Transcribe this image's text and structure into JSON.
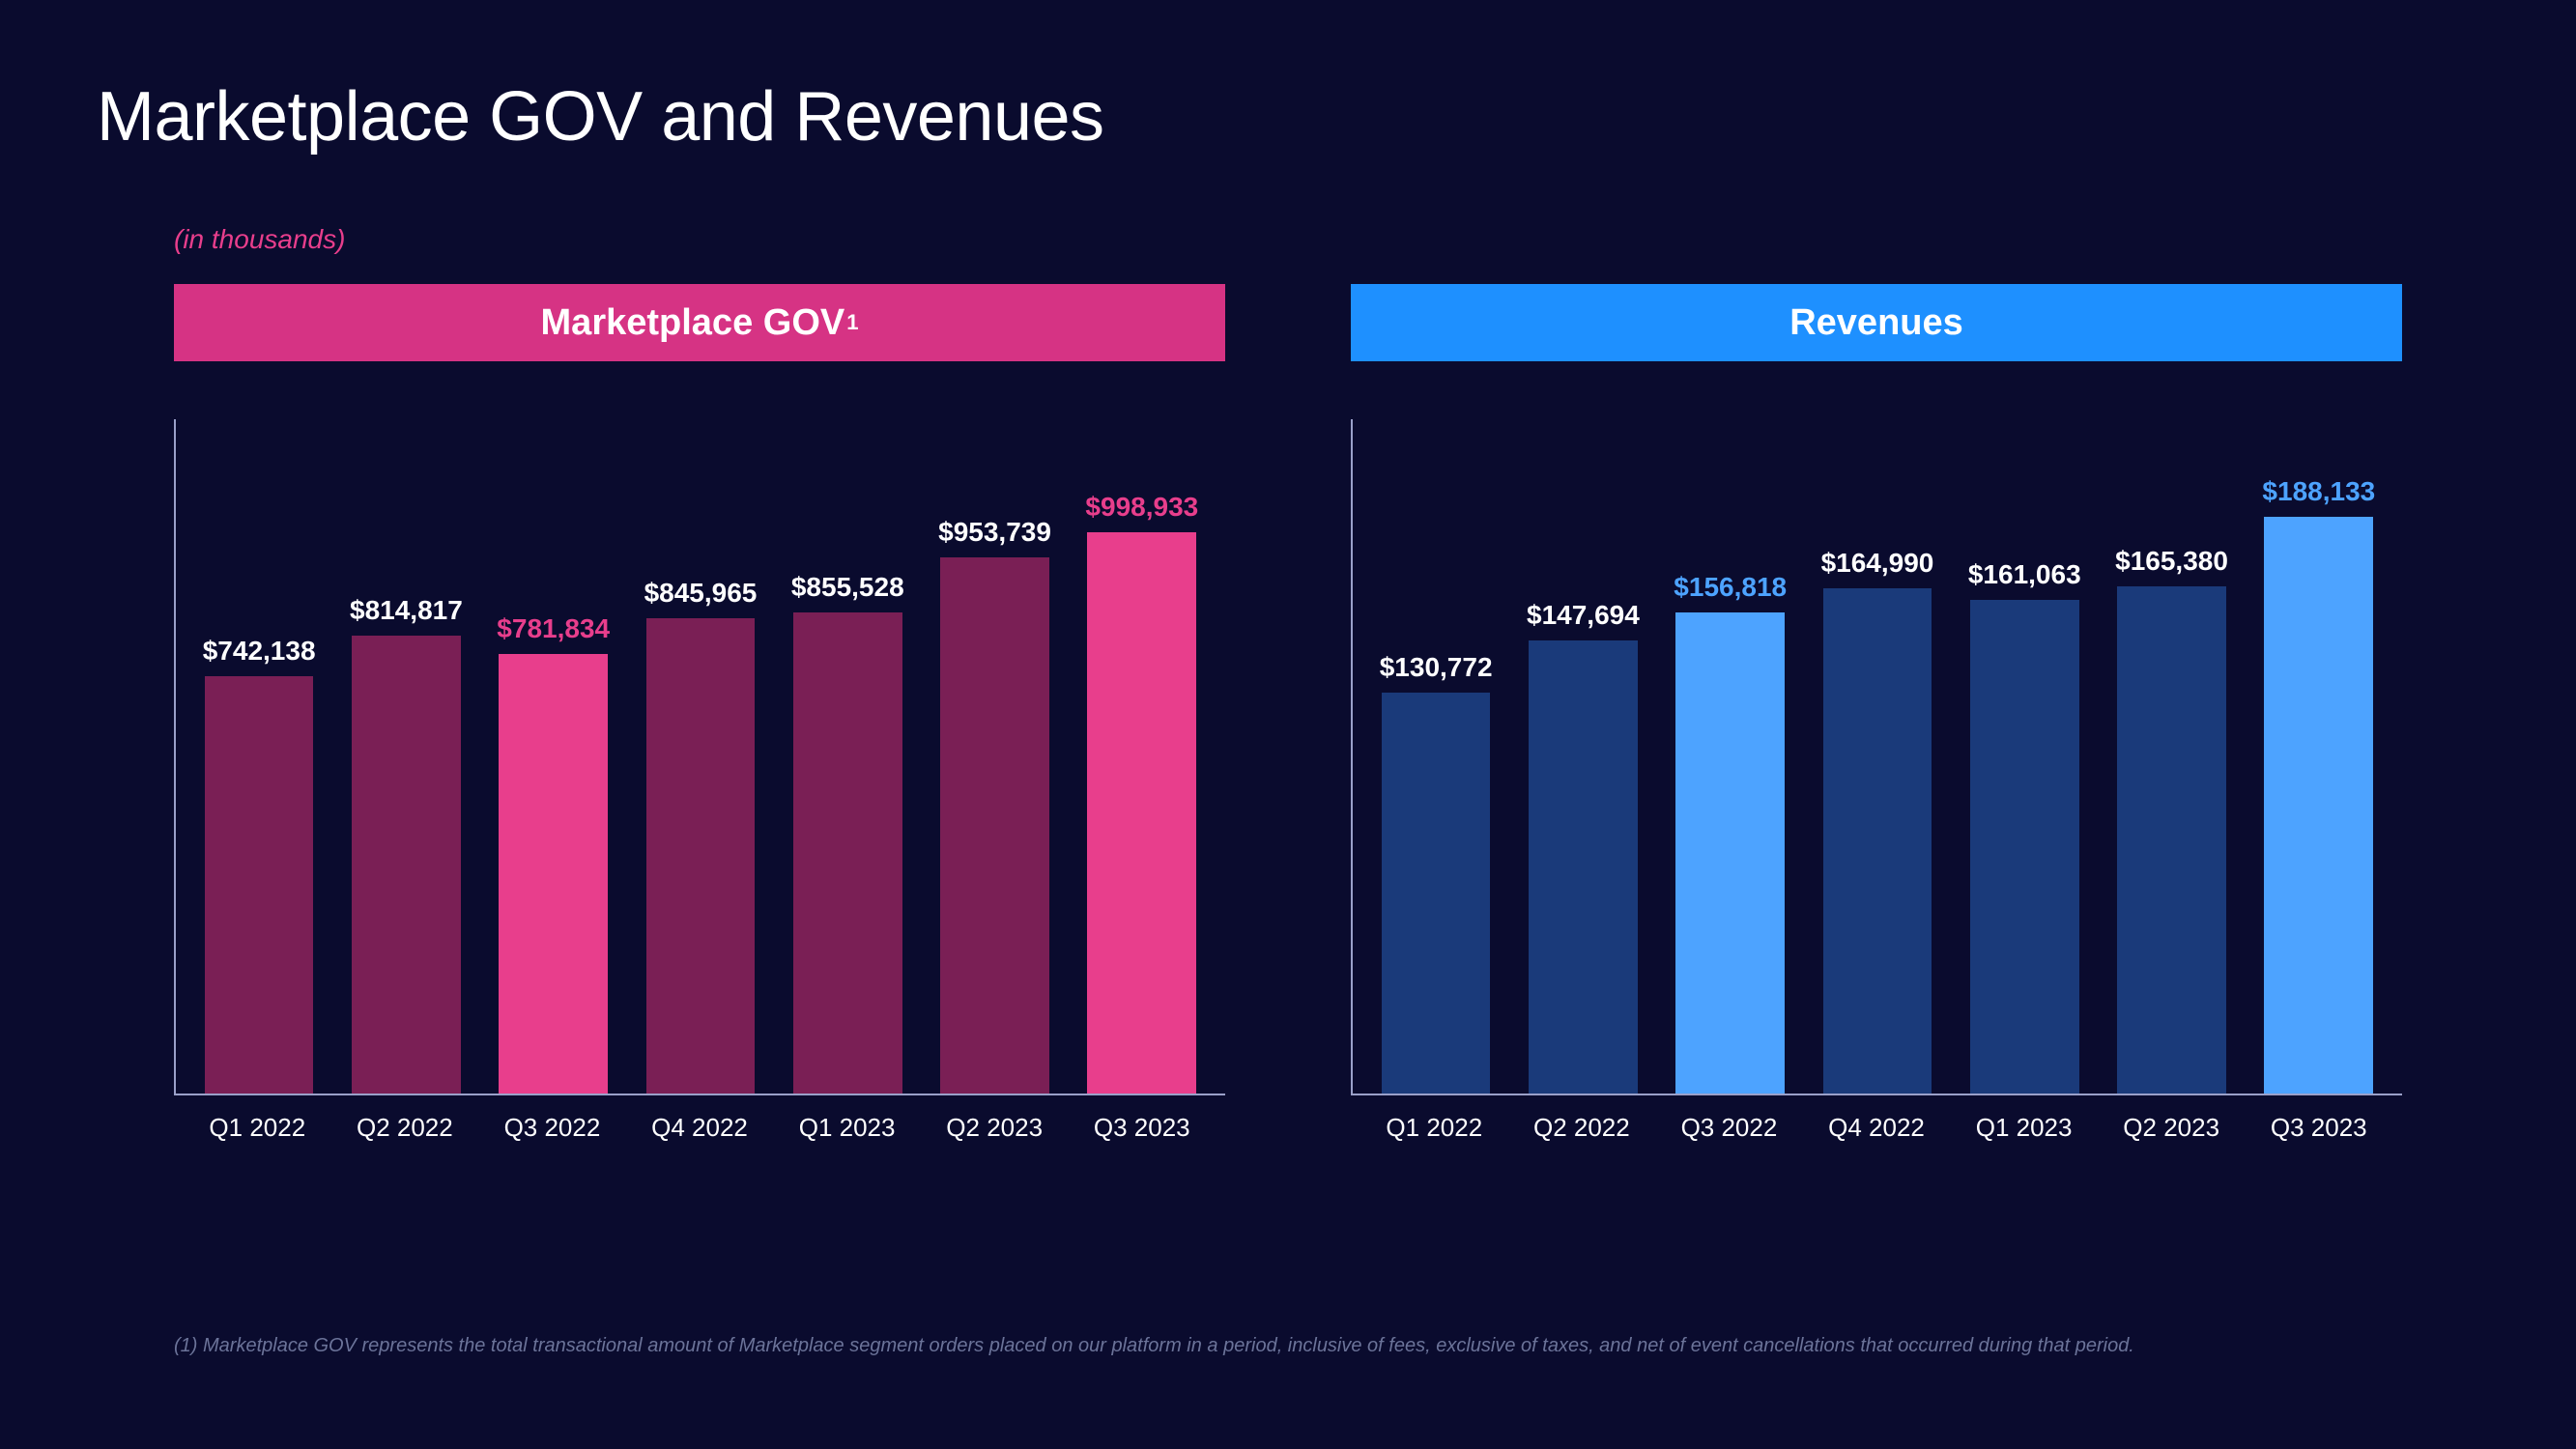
{
  "title": "Marketplace GOV and Revenues",
  "subtitle": "(in thousands)",
  "background_color": "#0a0b2e",
  "axis_color": "#9aa0c9",
  "title_color": "#ffffff",
  "subtitle_color": "#e83e8c",
  "x_label_color": "#ffffff",
  "footnote_color": "#6b7399",
  "title_fontsize": 72,
  "subtitle_fontsize": 28,
  "header_fontsize": 38,
  "bar_label_fontsize": 28,
  "x_label_fontsize": 26,
  "footnote_fontsize": 20,
  "categories": [
    "Q1 2022",
    "Q2 2022",
    "Q3 2022",
    "Q4 2022",
    "Q1 2023",
    "Q2 2023",
    "Q3 2023"
  ],
  "charts": [
    {
      "header_label": "Marketplace GOV",
      "header_sup": "1",
      "header_bg": "#d63384",
      "type": "bar",
      "y_max": 1200000,
      "bar_width_pct": 74,
      "default_bar_color": "#7a1f55",
      "highlight_bar_color": "#e83e8c",
      "default_label_color": "#ffffff",
      "highlight_label_color": "#e83e8c",
      "bars": [
        {
          "label": "$742,138",
          "value": 742138,
          "highlight": false
        },
        {
          "label": "$814,817",
          "value": 814817,
          "highlight": false
        },
        {
          "label": "$781,834",
          "value": 781834,
          "highlight": true
        },
        {
          "label": "$845,965",
          "value": 845965,
          "highlight": false
        },
        {
          "label": "$855,528",
          "value": 855528,
          "highlight": false
        },
        {
          "label": "$953,739",
          "value": 953739,
          "highlight": false
        },
        {
          "label": "$998,933",
          "value": 998933,
          "highlight": true
        }
      ]
    },
    {
      "header_label": "Revenues",
      "header_sup": "",
      "header_bg": "#1e90ff",
      "type": "bar",
      "y_max": 220000,
      "bar_width_pct": 74,
      "default_bar_color": "#1a3a7a",
      "highlight_bar_color": "#4da3ff",
      "default_label_color": "#ffffff",
      "highlight_label_color": "#4da3ff",
      "bars": [
        {
          "label": "$130,772",
          "value": 130772,
          "highlight": false
        },
        {
          "label": "$147,694",
          "value": 147694,
          "highlight": false
        },
        {
          "label": "$156,818",
          "value": 156818,
          "highlight": true
        },
        {
          "label": "$164,990",
          "value": 164990,
          "highlight": false
        },
        {
          "label": "$161,063",
          "value": 161063,
          "highlight": false
        },
        {
          "label": "$165,380",
          "value": 165380,
          "highlight": false
        },
        {
          "label": "$188,133",
          "value": 188133,
          "highlight": true
        }
      ]
    }
  ],
  "footnote": "(1) Marketplace GOV represents the total transactional amount of Marketplace segment orders placed on our platform in a period, inclusive of fees, exclusive of taxes, and net of event cancellations that occurred during that period."
}
